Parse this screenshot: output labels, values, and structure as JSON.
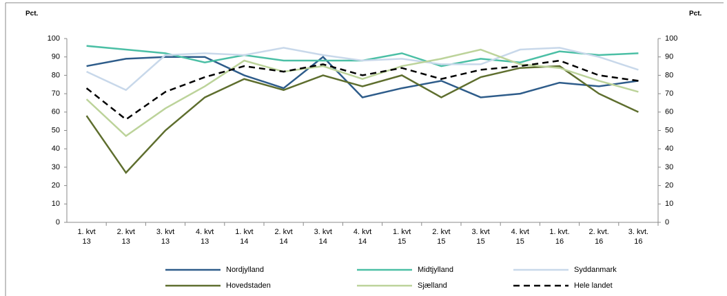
{
  "chart_data": {
    "type": "line",
    "y_unit_label": "Pct.",
    "y2_unit_label": "Pct.",
    "categories": [
      [
        "1. kvt",
        "13"
      ],
      [
        "2. kvt",
        "13"
      ],
      [
        "3. kvt",
        "13"
      ],
      [
        "4. kvt",
        "13"
      ],
      [
        "1. kvt",
        "14"
      ],
      [
        "2. kvt",
        "14"
      ],
      [
        "3. kvt",
        "14"
      ],
      [
        "4. kvt",
        "14"
      ],
      [
        "1. kvt",
        "15"
      ],
      [
        "2. kvt",
        "15"
      ],
      [
        "3. kvt",
        "15"
      ],
      [
        "4. kvt",
        "15"
      ],
      [
        "1. kvt.",
        "16"
      ],
      [
        "2. kvt.",
        "16"
      ],
      [
        "3. kvt.",
        "16"
      ]
    ],
    "series": [
      {
        "name": "Nordjylland",
        "color": "#2e5c8a",
        "dashed": false,
        "values": [
          85,
          89,
          90,
          90,
          80,
          73,
          90,
          68,
          73,
          77,
          68,
          70,
          76,
          74,
          77
        ]
      },
      {
        "name": "Midtjylland",
        "color": "#4bbfa5",
        "dashed": false,
        "values": [
          96,
          94,
          92,
          87,
          91,
          88,
          88,
          88,
          92,
          85,
          89,
          87,
          93,
          91,
          92
        ]
      },
      {
        "name": "Syddanmark",
        "color": "#c8d8ea",
        "dashed": false,
        "values": [
          82,
          72,
          91,
          92,
          91,
          95,
          91,
          88,
          89,
          86,
          86,
          94,
          95,
          90,
          83
        ]
      },
      {
        "name": "Hovedstaden",
        "color": "#5e6e2e",
        "dashed": false,
        "values": [
          58,
          27,
          50,
          68,
          78,
          72,
          80,
          74,
          80,
          68,
          79,
          84,
          85,
          70,
          60
        ]
      },
      {
        "name": "Sjælland",
        "color": "#bcd39a",
        "dashed": false,
        "values": [
          67,
          47,
          62,
          74,
          88,
          82,
          85,
          78,
          85,
          89,
          94,
          86,
          84,
          77,
          71
        ]
      },
      {
        "name": "Hele landet",
        "color": "#000000",
        "dashed": true,
        "values": [
          73,
          56,
          71,
          79,
          85,
          82,
          86,
          80,
          84,
          78,
          83,
          85,
          88,
          80,
          77
        ]
      }
    ],
    "ylim": [
      0,
      100
    ],
    "yticks": [
      0,
      10,
      20,
      30,
      40,
      50,
      60,
      70,
      80,
      90,
      100
    ],
    "y2lim": [
      0,
      100
    ],
    "y2ticks": [
      0,
      10,
      20,
      30,
      40,
      50,
      60,
      70,
      80,
      90,
      100
    ],
    "grid": false
  }
}
